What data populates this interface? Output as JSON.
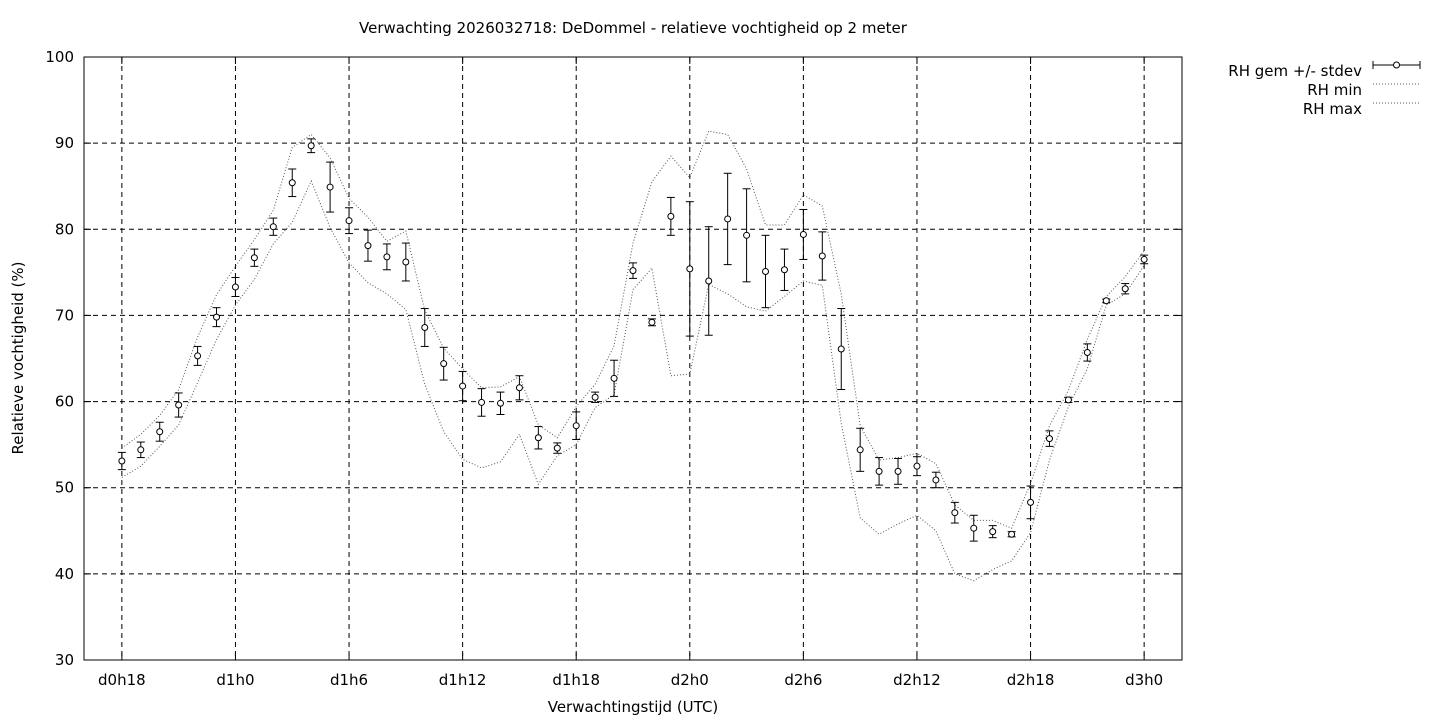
{
  "chart_data": {
    "type": "line",
    "title": "Verwachting 2026032718: DeDommel - relatieve vochtigheid op 2 meter",
    "xlabel": "Verwachtingstijd (UTC)",
    "ylabel": "Relatieve vochtigheid (%)",
    "ylim": [
      30,
      100
    ],
    "xlim": [
      -2,
      56
    ],
    "yticks": [
      30,
      40,
      50,
      60,
      70,
      80,
      90,
      100
    ],
    "xticks": [
      {
        "x": 0,
        "label": "d0h18"
      },
      {
        "x": 6,
        "label": "d1h0"
      },
      {
        "x": 12,
        "label": "d1h6"
      },
      {
        "x": 18,
        "label": "d1h12"
      },
      {
        "x": 24,
        "label": "d1h18"
      },
      {
        "x": 30,
        "label": "d2h0"
      },
      {
        "x": 36,
        "label": "d2h6"
      },
      {
        "x": 42,
        "label": "d2h12"
      },
      {
        "x": 48,
        "label": "d2h18"
      },
      {
        "x": 54,
        "label": "d3h0"
      }
    ],
    "grid": true,
    "legend_position": "outside top-right",
    "legend": [
      "RH gem +/- stdev",
      "RH min",
      "RH max"
    ],
    "x": [
      0,
      1,
      2,
      3,
      4,
      5,
      6,
      7,
      8,
      9,
      10,
      11,
      12,
      13,
      14,
      15,
      16,
      17,
      18,
      19,
      20,
      21,
      22,
      23,
      24,
      25,
      26,
      27,
      28,
      29,
      30,
      31,
      32,
      33,
      34,
      35,
      36,
      37,
      38,
      39,
      40,
      41,
      42,
      43,
      44,
      45,
      46,
      47,
      48,
      49,
      50,
      51,
      52,
      53,
      54
    ],
    "series": [
      {
        "name": "RH gem +/- stdev",
        "style": "points-errorbars",
        "mean": [
          53.1,
          54.4,
          56.5,
          59.6,
          65.3,
          69.8,
          73.3,
          76.7,
          80.3,
          85.4,
          89.7,
          84.9,
          81.0,
          78.1,
          76.8,
          76.2,
          68.6,
          64.4,
          61.8,
          59.9,
          59.8,
          61.6,
          55.8,
          54.6,
          57.2,
          60.5,
          62.7,
          75.2,
          69.2,
          81.5,
          75.4,
          74.0,
          81.2,
          79.3,
          75.1,
          75.3,
          79.4,
          76.9,
          66.1,
          54.4,
          51.9,
          51.9,
          52.5,
          50.9,
          47.1,
          45.3,
          44.9,
          44.6,
          48.3,
          55.7,
          60.2,
          65.7,
          71.7,
          73.1,
          76.5
        ],
        "stdev": [
          1.0,
          0.9,
          1.1,
          1.4,
          1.1,
          1.1,
          1.1,
          1.0,
          1.0,
          1.6,
          0.8,
          2.9,
          1.5,
          1.8,
          1.5,
          2.2,
          2.2,
          1.9,
          1.7,
          1.6,
          1.3,
          1.4,
          1.3,
          0.6,
          1.6,
          0.6,
          2.1,
          0.9,
          0.4,
          2.2,
          7.8,
          6.3,
          5.3,
          5.4,
          4.2,
          2.4,
          2.9,
          2.8,
          4.7,
          2.5,
          1.6,
          1.5,
          1.1,
          0.9,
          1.2,
          1.5,
          0.7,
          0.3,
          1.9,
          0.9,
          0.3,
          1.0,
          0.2,
          0.6,
          0.5
        ]
      },
      {
        "name": "RH min",
        "style": "dotted",
        "values": [
          51.2,
          52.5,
          54.8,
          57.3,
          62.2,
          67.2,
          71.2,
          74.2,
          78.3,
          80.8,
          85.6,
          80.2,
          76.1,
          73.8,
          72.5,
          70.7,
          62.0,
          56.5,
          53.3,
          52.3,
          53.0,
          56.2,
          50.4,
          53.7,
          55.0,
          59.3,
          60.8,
          73.0,
          75.5,
          63.0,
          63.2,
          73.6,
          72.5,
          71.0,
          70.5,
          72.2,
          74.0,
          73.5,
          57.5,
          46.5,
          44.6,
          45.8,
          46.8,
          45.0,
          40.0,
          39.2,
          40.5,
          41.5,
          44.8,
          53.2,
          59.4,
          63.8,
          71.2,
          72.5,
          75.8
        ]
      },
      {
        "name": "RH max",
        "style": "dotted",
        "values": [
          54.6,
          56.2,
          58.4,
          61.4,
          67.5,
          72.4,
          75.7,
          78.8,
          82.2,
          89.5,
          91.0,
          88.3,
          83.6,
          81.4,
          78.6,
          79.8,
          70.6,
          66.2,
          63.8,
          61.6,
          61.7,
          62.9,
          57.3,
          55.8,
          59.4,
          62.0,
          66.5,
          78.4,
          85.5,
          88.5,
          86.0,
          91.4,
          91.0,
          87.0,
          80.5,
          80.5,
          84.0,
          82.7,
          72.5,
          57.2,
          53.2,
          53.5,
          54.0,
          52.8,
          48.0,
          46.2,
          46.2,
          45.3,
          50.5,
          57.2,
          61.3,
          67.2,
          72.2,
          74.5,
          77.5
        ]
      }
    ]
  }
}
